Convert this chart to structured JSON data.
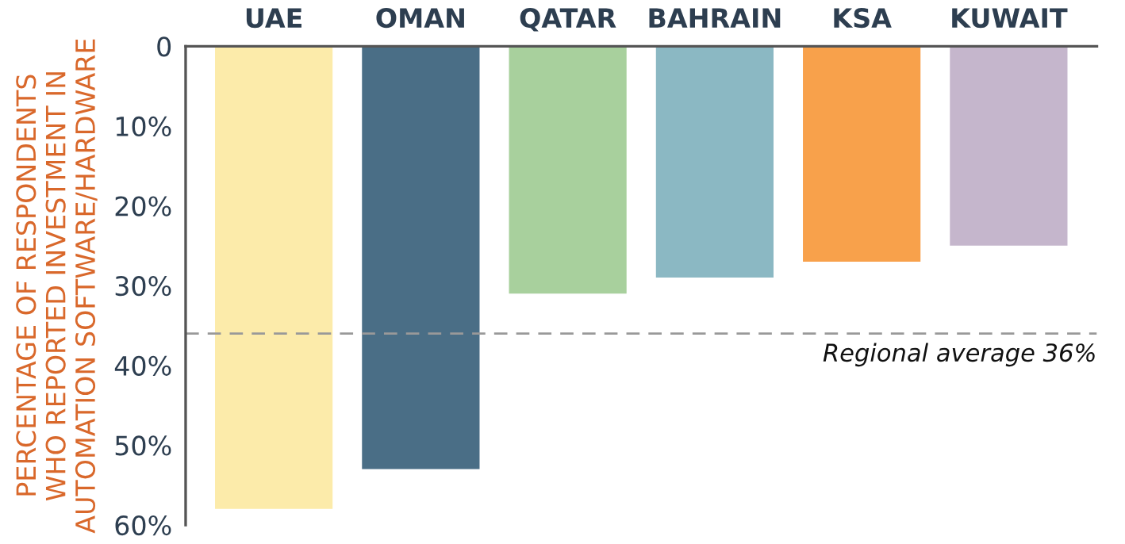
{
  "chart_data": {
    "type": "bar",
    "ylabel": "PERCENTAGE OF RESPONDENTS\nWHO REPORTED INVESTMENT IN\nAUTOMATION SOFTWARE/HARDWARE",
    "categories": [
      "UAE",
      "OMAN",
      "QATAR",
      "BAHRAIN",
      "KSA",
      "KUWAIT"
    ],
    "values": [
      58,
      53,
      31,
      29,
      27,
      25
    ],
    "colors": [
      "#fcebaa",
      "#4a6e86",
      "#a8d09d",
      "#8bb8c3",
      "#f8a14b",
      "#c5b6cc"
    ],
    "ylim": [
      60,
      0
    ],
    "yticks": [
      {
        "value": 0,
        "label": "0"
      },
      {
        "value": 10,
        "label": "10%"
      },
      {
        "value": 20,
        "label": "20%"
      },
      {
        "value": 30,
        "label": "30%"
      },
      {
        "value": 40,
        "label": "40%"
      },
      {
        "value": 50,
        "label": "50%"
      },
      {
        "value": 60,
        "label": "60%"
      }
    ],
    "ref_lines": [
      {
        "axis": "y",
        "value": 36,
        "label": "Regional average 36%",
        "color": "#999999",
        "line_style": "dashed"
      }
    ],
    "grid": false,
    "legend": false
  }
}
